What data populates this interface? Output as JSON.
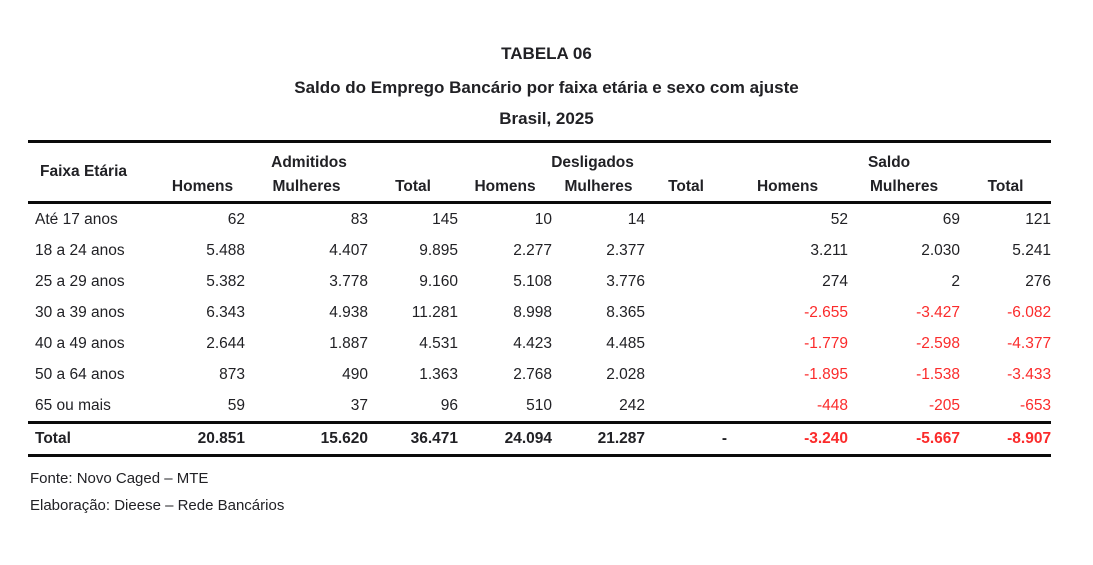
{
  "title": {
    "line1": "TABELA 06",
    "line2": "Saldo do Emprego Bancário por faixa etária e sexo com ajuste",
    "line3": "Brasil, 2025"
  },
  "table": {
    "row_header": "Faixa Etária",
    "groups": [
      {
        "label": "Admitidos",
        "cols": [
          "Homens",
          "Mulheres",
          "Total"
        ]
      },
      {
        "label": "Desligados",
        "cols": [
          "Homens",
          "Mulheres",
          "Total"
        ]
      },
      {
        "label": "Saldo",
        "cols": [
          "Homens",
          "Mulheres",
          "Total"
        ]
      }
    ],
    "rows": [
      {
        "label": "Até 17 anos",
        "cells": [
          "62",
          "83",
          "145",
          "10",
          "14",
          "",
          "52",
          "69",
          "121"
        ]
      },
      {
        "label": "18 a 24 anos",
        "cells": [
          "5.488",
          "4.407",
          "9.895",
          "2.277",
          "2.377",
          "",
          "3.211",
          "2.030",
          "5.241"
        ]
      },
      {
        "label": "25 a 29 anos",
        "cells": [
          "5.382",
          "3.778",
          "9.160",
          "5.108",
          "3.776",
          "",
          "274",
          "2",
          "276"
        ]
      },
      {
        "label": "30 a 39 anos",
        "cells": [
          "6.343",
          "4.938",
          "11.281",
          "8.998",
          "8.365",
          "",
          "-2.655",
          "-3.427",
          "-6.082"
        ]
      },
      {
        "label": "40 a 49 anos",
        "cells": [
          "2.644",
          "1.887",
          "4.531",
          "4.423",
          "4.485",
          "",
          "-1.779",
          "-2.598",
          "-4.377"
        ]
      },
      {
        "label": "50 a 64 anos",
        "cells": [
          "873",
          "490",
          "1.363",
          "2.768",
          "2.028",
          "",
          "-1.895",
          "-1.538",
          "-3.433"
        ]
      },
      {
        "label": "65 ou mais",
        "cells": [
          "59",
          "37",
          "96",
          "510",
          "242",
          "",
          "-448",
          "-205",
          "-653"
        ]
      }
    ],
    "total_row": {
      "label": "Total",
      "cells": [
        "20.851",
        "15.620",
        "36.471",
        "24.094",
        "21.287",
        "-",
        "-3.240",
        "-5.667",
        "-8.907"
      ]
    }
  },
  "footer": {
    "source": "Fonte: Novo Caged – MTE",
    "elaboration": "Elaboração: Dieese – Rede Bancários"
  },
  "colors": {
    "text": "#212125",
    "negative_value": "#fb2b2b",
    "rule": "#0a0a0a",
    "background": "#ffffff"
  }
}
